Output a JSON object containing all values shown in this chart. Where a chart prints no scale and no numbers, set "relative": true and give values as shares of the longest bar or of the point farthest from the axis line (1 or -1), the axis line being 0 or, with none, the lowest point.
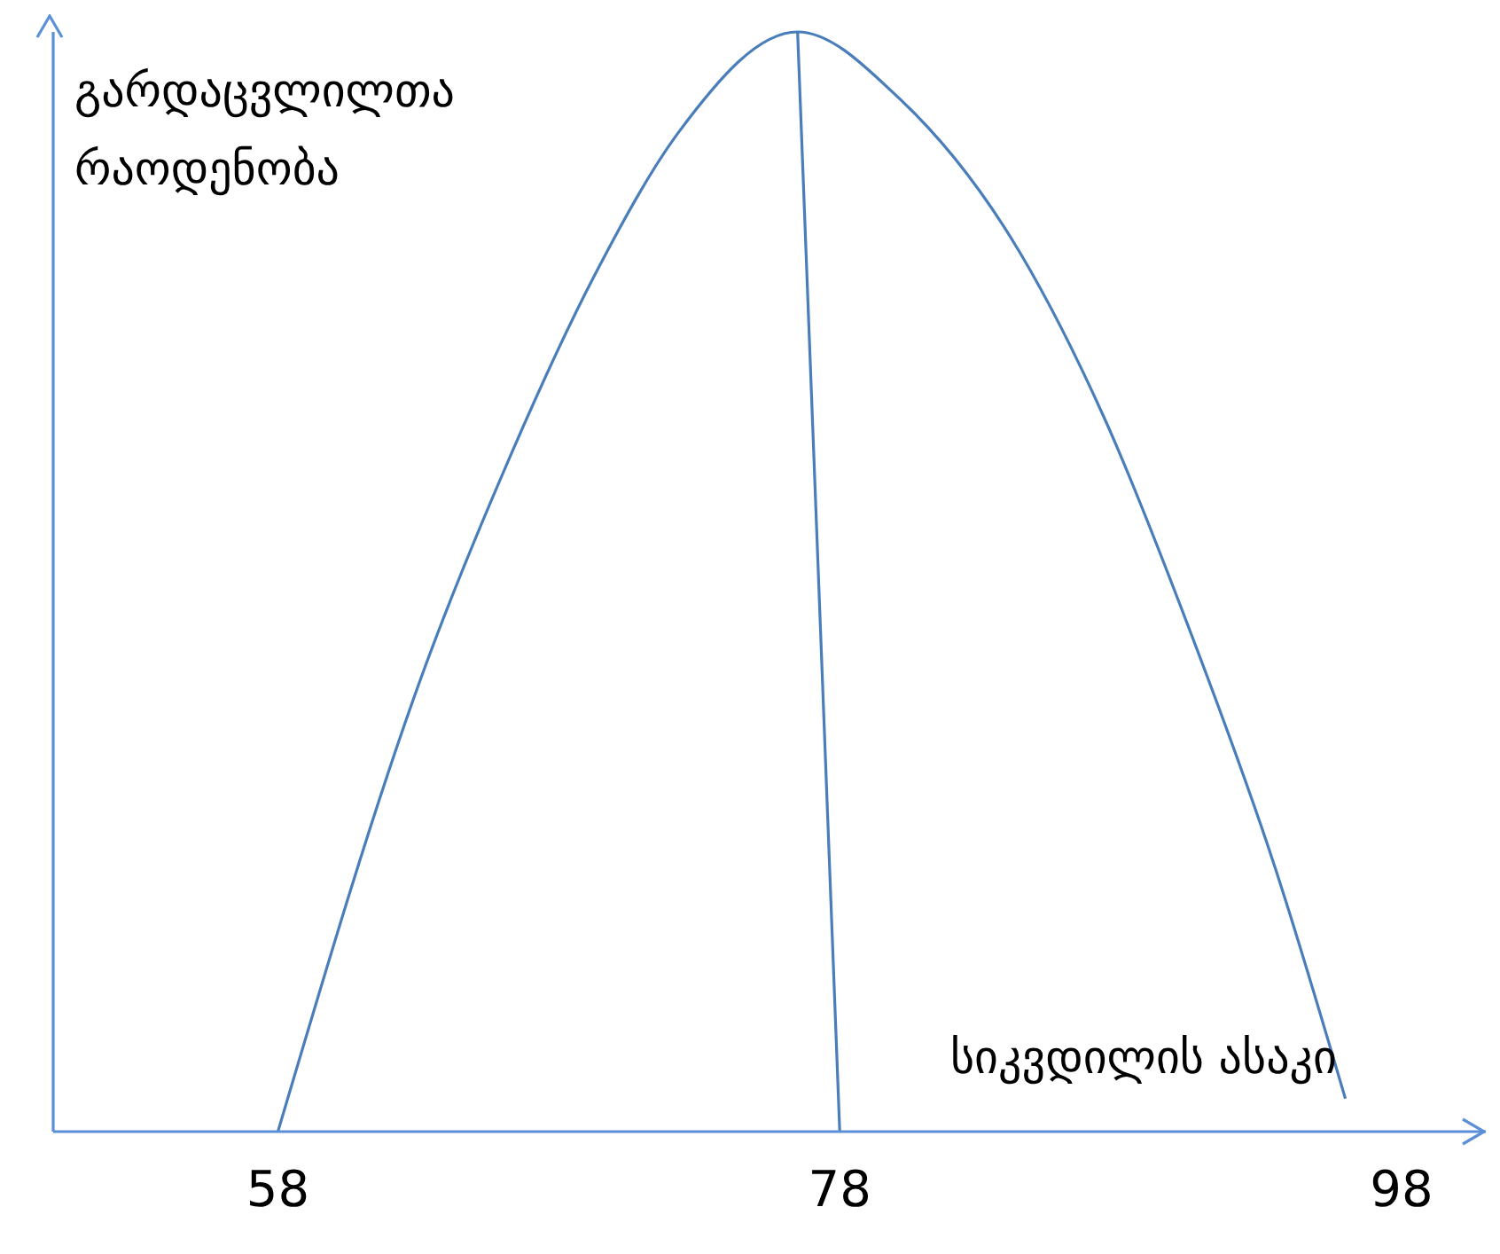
{
  "chart_data": {
    "type": "line",
    "relative": true,
    "ylabel": "გარდაცვლილთა\nრაოდენობა",
    "xlabel": "სიკვდილის ასაკი",
    "xlim": [
      50,
      101
    ],
    "xticks": [
      58,
      78,
      98
    ],
    "grid": false,
    "legend": false,
    "marker": "none",
    "line_style": "solid",
    "series": [
      {
        "color": "#4a7ebb",
        "x": [
          58,
          63.2,
          66.2,
          69.3,
          72.3,
          76.5,
          80.1,
          84.4,
          87.4,
          90.4,
          93.5,
          96
        ],
        "values": [
          0,
          0.42,
          0.61,
          0.78,
          0.91,
          1,
          0.94,
          0.8,
          0.65,
          0.46,
          0.24,
          0.03
        ]
      },
      {
        "color": "#4a7ebb",
        "x": [
          76.5,
          78
        ],
        "values": [
          1,
          0
        ]
      }
    ]
  }
}
